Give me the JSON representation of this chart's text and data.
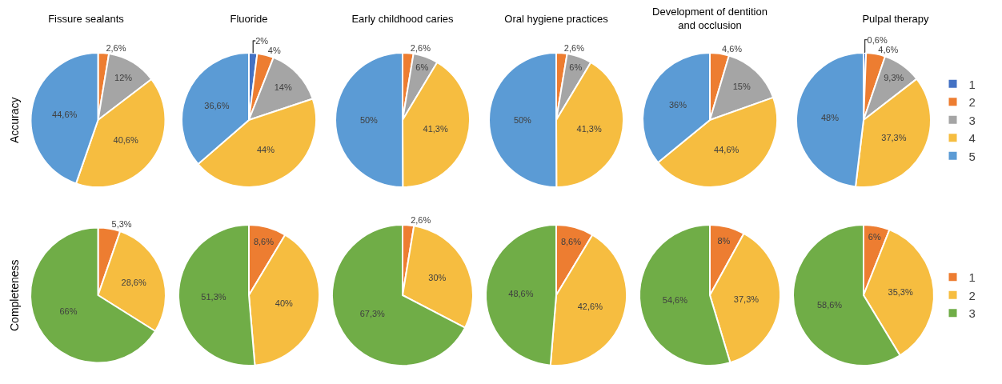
{
  "chart_data": [
    {
      "type": "pie",
      "title": "Fissure sealants",
      "ylabel": "Accuracy",
      "categories": [
        null,
        null,
        null,
        null,
        null
      ],
      "values": [
        null,
        2.6,
        12,
        40.6,
        44.6
      ],
      "value_labels": [
        null,
        "2,6%",
        "12%",
        "40,6%",
        "44,6%"
      ],
      "colors": [
        "#4472c4",
        "#ed7d31",
        "#a5a5a5",
        "#f6bd40",
        "#5b9bd5"
      ],
      "legend": false
    },
    {
      "type": "pie",
      "title": "Fluoride",
      "categories": [
        null,
        null,
        null,
        null,
        null
      ],
      "values": [
        2,
        4,
        14,
        44,
        36.6
      ],
      "value_labels": [
        "2%",
        "4%",
        "14%",
        "44%",
        "36,6%"
      ],
      "colors": [
        "#4472c4",
        "#ed7d31",
        "#a5a5a5",
        "#f6bd40",
        "#5b9bd5"
      ],
      "legend": false
    },
    {
      "type": "pie",
      "title": "Early childhood caries",
      "categories": [
        null,
        null,
        null,
        null,
        null
      ],
      "values": [
        null,
        2.6,
        6,
        41.3,
        50
      ],
      "value_labels": [
        null,
        "2,6%",
        "6%",
        "41,3%",
        "50%"
      ],
      "colors": [
        "#4472c4",
        "#ed7d31",
        "#a5a5a5",
        "#f6bd40",
        "#5b9bd5"
      ],
      "legend": false
    },
    {
      "type": "pie",
      "title": "Oral hygiene practices",
      "categories": [
        null,
        null,
        null,
        null,
        null
      ],
      "values": [
        null,
        2.6,
        6,
        41.3,
        50
      ],
      "value_labels": [
        null,
        "2,6%",
        "6%",
        "41,3%",
        "50%"
      ],
      "colors": [
        "#4472c4",
        "#ed7d31",
        "#a5a5a5",
        "#f6bd40",
        "#5b9bd5"
      ],
      "legend": false
    },
    {
      "type": "pie",
      "title": "Development of dentition and occlusion",
      "categories": [
        null,
        null,
        null,
        null,
        null
      ],
      "values": [
        null,
        4.6,
        15,
        44.6,
        36
      ],
      "value_labels": [
        null,
        "4,6%",
        "15%",
        "44,6%",
        "36%"
      ],
      "colors": [
        "#4472c4",
        "#ed7d31",
        "#a5a5a5",
        "#f6bd40",
        "#5b9bd5"
      ],
      "legend": false
    },
    {
      "type": "pie",
      "title": "Pulpal therapy",
      "categories": [
        "1",
        "2",
        "3",
        "4",
        "5"
      ],
      "values": [
        0.6,
        4.6,
        9.3,
        37.3,
        48
      ],
      "value_labels": [
        "0,6%",
        "4,6%",
        "9,3%",
        "37,3%",
        "48%"
      ],
      "colors": [
        "#4472c4",
        "#ed7d31",
        "#a5a5a5",
        "#f6bd40",
        "#5b9bd5"
      ],
      "legend": "right"
    },
    {
      "type": "pie",
      "ylabel": "Completeness",
      "categories": [
        null,
        null,
        null
      ],
      "values": [
        5.3,
        28.6,
        66
      ],
      "value_labels": [
        "5,3%",
        "28,6%",
        "66%"
      ],
      "colors": [
        "#ed7d31",
        "#f6bd40",
        "#70ad47"
      ],
      "legend": false
    },
    {
      "type": "pie",
      "categories": [
        null,
        null,
        null
      ],
      "values": [
        8.6,
        40,
        51.3
      ],
      "value_labels": [
        "8,6%",
        "40%",
        "51,3%"
      ],
      "colors": [
        "#ed7d31",
        "#f6bd40",
        "#70ad47"
      ],
      "legend": false
    },
    {
      "type": "pie",
      "categories": [
        null,
        null,
        null
      ],
      "values": [
        2.6,
        30,
        67.3
      ],
      "value_labels": [
        "2,6%",
        "30%",
        "67,3%"
      ],
      "colors": [
        "#ed7d31",
        "#f6bd40",
        "#70ad47"
      ],
      "legend": false
    },
    {
      "type": "pie",
      "categories": [
        null,
        null,
        null
      ],
      "values": [
        8.6,
        42.6,
        48.6
      ],
      "value_labels": [
        "8,6%",
        "42,6%",
        "48,6%"
      ],
      "colors": [
        "#ed7d31",
        "#f6bd40",
        "#70ad47"
      ],
      "legend": false
    },
    {
      "type": "pie",
      "categories": [
        null,
        null,
        null
      ],
      "values": [
        8,
        37.3,
        54.6
      ],
      "value_labels": [
        "8%",
        "37,3%",
        "54,6%"
      ],
      "colors": [
        "#ed7d31",
        "#f6bd40",
        "#70ad47"
      ],
      "legend": false
    },
    {
      "type": "pie",
      "categories": [
        "1",
        "2",
        "3"
      ],
      "values": [
        6,
        35.3,
        58.6
      ],
      "value_labels": [
        "6%",
        "35,3%",
        "58,6%"
      ],
      "colors": [
        "#ed7d31",
        "#f6bd40",
        "#70ad47"
      ],
      "legend": "right"
    }
  ]
}
